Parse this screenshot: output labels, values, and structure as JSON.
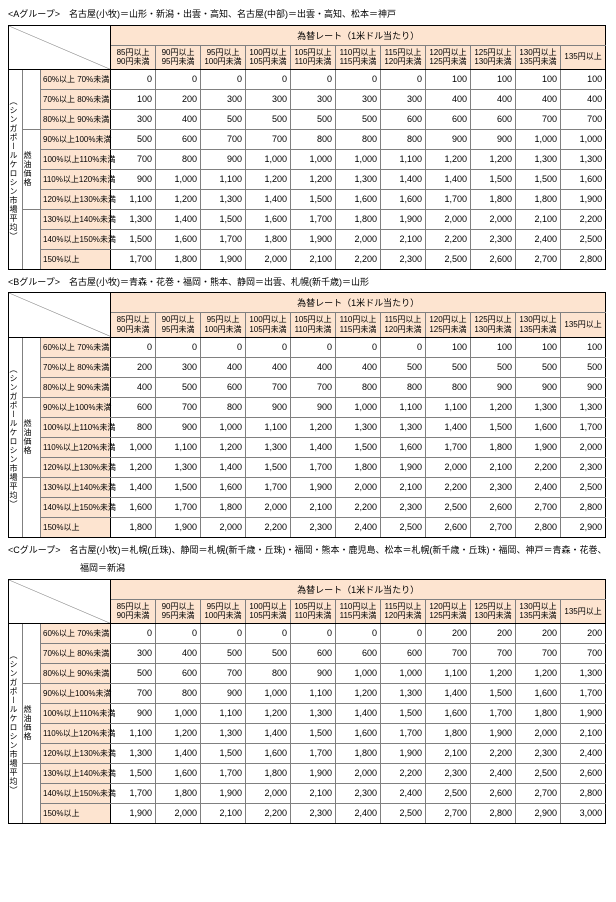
{
  "exchange_header": "為替レート（1米ドル当たり）",
  "side_label_outer": "（シンガポールケロシン市場平均）",
  "side_label_inner": "燃油価格",
  "col_headers": [
    {
      "l1": "85円以上",
      "l2": "90円未満"
    },
    {
      "l1": "90円以上",
      "l2": "95円未満"
    },
    {
      "l1": "95円以上",
      "l2": "100円未満"
    },
    {
      "l1": "100円以上",
      "l2": "105円未満"
    },
    {
      "l1": "105円以上",
      "l2": "110円未満"
    },
    {
      "l1": "110円以上",
      "l2": "115円未満"
    },
    {
      "l1": "115円以上",
      "l2": "120円未満"
    },
    {
      "l1": "120円以上",
      "l2": "125円未満"
    },
    {
      "l1": "125円以上",
      "l2": "130円未満"
    },
    {
      "l1": "130円以上",
      "l2": "135円未満"
    },
    {
      "l1": "135円以上",
      "l2": ""
    }
  ],
  "row_labels": [
    "60%以上 70%未満",
    "70%以上 80%未満",
    "80%以上 90%未満",
    "90%以上100%未満",
    "100%以上110%未満",
    "110%以上120%未満",
    "120%以上130%未満",
    "130%以上140%未満",
    "140%以上150%未満",
    "150%以上"
  ],
  "groups": [
    {
      "title": "<Aグループ>　名古屋(小牧)＝山形・新潟・出雲・高知、名古屋(中部)＝出雲・高知、松本＝神戸",
      "title2": "",
      "rows": [
        [
          0,
          0,
          0,
          0,
          0,
          0,
          0,
          100,
          100,
          100,
          100
        ],
        [
          100,
          200,
          300,
          300,
          300,
          300,
          300,
          400,
          400,
          400,
          400
        ],
        [
          300,
          400,
          500,
          500,
          500,
          500,
          600,
          600,
          600,
          700,
          700
        ],
        [
          500,
          600,
          700,
          700,
          800,
          800,
          800,
          900,
          900,
          "1,000",
          "1,000"
        ],
        [
          700,
          800,
          900,
          "1,000",
          "1,000",
          "1,000",
          "1,100",
          "1,200",
          "1,200",
          "1,300",
          "1,300"
        ],
        [
          900,
          "1,000",
          "1,100",
          "1,200",
          "1,200",
          "1,300",
          "1,400",
          "1,400",
          "1,500",
          "1,500",
          "1,600"
        ],
        [
          "1,100",
          "1,200",
          "1,300",
          "1,400",
          "1,500",
          "1,600",
          "1,600",
          "1,700",
          "1,800",
          "1,800",
          "1,900"
        ],
        [
          "1,300",
          "1,400",
          "1,500",
          "1,600",
          "1,700",
          "1,800",
          "1,900",
          "2,000",
          "2,000",
          "2,100",
          "2,200"
        ],
        [
          "1,500",
          "1,600",
          "1,700",
          "1,800",
          "1,900",
          "2,000",
          "2,100",
          "2,200",
          "2,300",
          "2,400",
          "2,500"
        ],
        [
          "1,700",
          "1,800",
          "1,900",
          "2,000",
          "2,100",
          "2,200",
          "2,300",
          "2,500",
          "2,600",
          "2,700",
          "2,800"
        ]
      ]
    },
    {
      "title": "<Bグループ>　名古屋(小牧)＝青森・花巻・福岡・熊本、静岡＝出雲、札幌(新千歳)＝山形",
      "title2": "",
      "rows": [
        [
          0,
          0,
          0,
          0,
          0,
          0,
          0,
          100,
          100,
          100,
          100
        ],
        [
          200,
          300,
          400,
          400,
          400,
          400,
          500,
          500,
          500,
          500,
          500
        ],
        [
          400,
          500,
          600,
          700,
          700,
          800,
          800,
          800,
          900,
          900,
          900
        ],
        [
          600,
          700,
          800,
          900,
          900,
          "1,000",
          "1,100",
          "1,100",
          "1,200",
          "1,300",
          "1,300"
        ],
        [
          800,
          900,
          "1,000",
          "1,100",
          "1,200",
          "1,300",
          "1,300",
          "1,400",
          "1,500",
          "1,600",
          "1,700"
        ],
        [
          "1,000",
          "1,100",
          "1,200",
          "1,300",
          "1,400",
          "1,500",
          "1,600",
          "1,700",
          "1,800",
          "1,900",
          "2,000"
        ],
        [
          "1,200",
          "1,300",
          "1,400",
          "1,500",
          "1,700",
          "1,800",
          "1,900",
          "2,000",
          "2,100",
          "2,200",
          "2,300"
        ],
        [
          "1,400",
          "1,500",
          "1,600",
          "1,700",
          "1,900",
          "2,000",
          "2,100",
          "2,200",
          "2,300",
          "2,400",
          "2,500"
        ],
        [
          "1,600",
          "1,700",
          "1,800",
          "2,000",
          "2,100",
          "2,200",
          "2,300",
          "2,500",
          "2,600",
          "2,700",
          "2,800"
        ],
        [
          "1,800",
          "1,900",
          "2,000",
          "2,200",
          "2,300",
          "2,400",
          "2,500",
          "2,600",
          "2,700",
          "2,800",
          "2,900"
        ]
      ]
    },
    {
      "title": "<Cグループ>　名古屋(小牧)＝札幌(丘珠)、静岡＝札幌(新千歳・丘珠)・福岡・熊本・鹿児島、松本＝札幌(新千歳・丘珠)・福岡、神戸＝青森・花巻、",
      "title2": "福岡＝新潟",
      "rows": [
        [
          0,
          0,
          0,
          0,
          0,
          0,
          0,
          200,
          200,
          200,
          200
        ],
        [
          300,
          400,
          500,
          500,
          600,
          600,
          600,
          700,
          700,
          700,
          700
        ],
        [
          500,
          600,
          700,
          800,
          900,
          "1,000",
          "1,000",
          "1,100",
          "1,200",
          "1,200",
          "1,300"
        ],
        [
          700,
          800,
          900,
          "1,000",
          "1,100",
          "1,200",
          "1,300",
          "1,400",
          "1,500",
          "1,600",
          "1,700"
        ],
        [
          900,
          "1,000",
          "1,100",
          "1,200",
          "1,300",
          "1,400",
          "1,500",
          "1,600",
          "1,700",
          "1,800",
          "1,900"
        ],
        [
          "1,100",
          "1,200",
          "1,300",
          "1,400",
          "1,500",
          "1,600",
          "1,700",
          "1,800",
          "1,900",
          "2,000",
          "2,100"
        ],
        [
          "1,300",
          "1,400",
          "1,500",
          "1,600",
          "1,700",
          "1,800",
          "1,900",
          "2,100",
          "2,200",
          "2,300",
          "2,400"
        ],
        [
          "1,500",
          "1,600",
          "1,700",
          "1,800",
          "1,900",
          "2,000",
          "2,200",
          "2,300",
          "2,400",
          "2,500",
          "2,600"
        ],
        [
          "1,700",
          "1,800",
          "1,900",
          "2,000",
          "2,100",
          "2,300",
          "2,400",
          "2,500",
          "2,600",
          "2,700",
          "2,800"
        ],
        [
          "1,900",
          "2,000",
          "2,100",
          "2,200",
          "2,300",
          "2,400",
          "2,500",
          "2,700",
          "2,800",
          "2,900",
          "3,000"
        ]
      ]
    }
  ]
}
